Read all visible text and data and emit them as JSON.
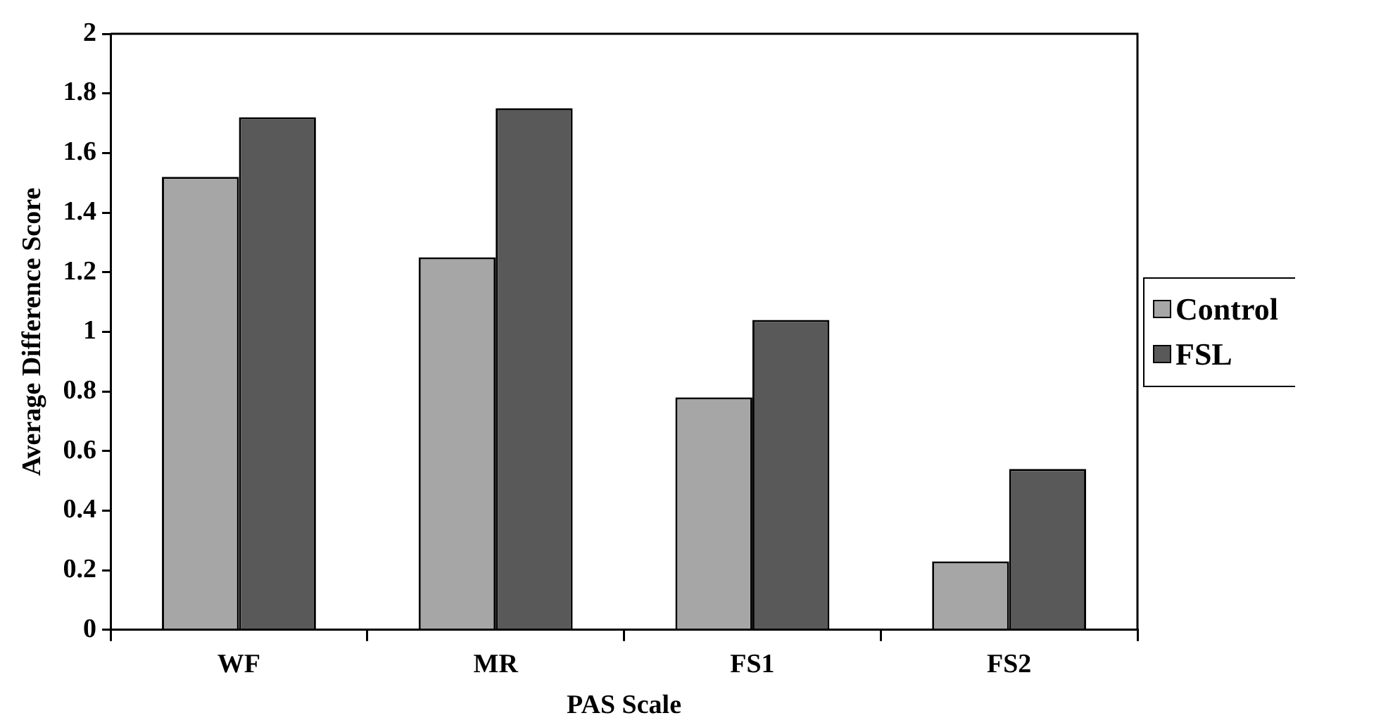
{
  "chart_data": {
    "type": "bar",
    "xlabel": "PAS Scale",
    "ylabel": "Average Difference Score",
    "categories": [
      "WF",
      "MR",
      "FS1",
      "FS2"
    ],
    "series": [
      {
        "name": "Control",
        "color": "#a6a6a6",
        "values": [
          1.52,
          1.25,
          0.78,
          0.23
        ]
      },
      {
        "name": "FSL",
        "color": "#595959",
        "values": [
          1.72,
          1.75,
          1.04,
          0.54
        ]
      }
    ],
    "ylim": [
      0,
      2
    ],
    "yticks": [
      0,
      0.2,
      0.4,
      0.6,
      0.8,
      1,
      1.2,
      1.4,
      1.6,
      1.8,
      2
    ],
    "grid": false,
    "legend": "right"
  }
}
